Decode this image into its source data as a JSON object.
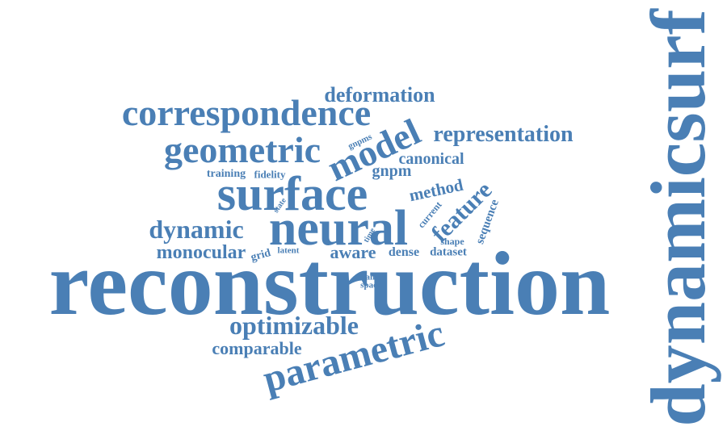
{
  "color": "#4a7fb5",
  "words": {
    "dynamicsurf": "dynamicsurf",
    "reconstruction": "reconstruction",
    "surface": "surface",
    "neural": "neural",
    "correspondence": "correspondence",
    "geometric": "geometric",
    "model": "model",
    "parametric": "parametric",
    "optimizable": "optimizable",
    "comparable": "comparable",
    "dynamic": "dynamic",
    "monocular": "monocular",
    "representation": "representation",
    "deformation": "deformation",
    "feature": "feature",
    "method": "method",
    "canonical": "canonical",
    "gnpm": "gnpm",
    "aware": "aware",
    "dense": "dense",
    "dataset": "dataset",
    "sequence": "sequence",
    "shape": "shape",
    "current": "current",
    "training": "training",
    "fidelity": "fidelity",
    "gnpms": "gnpms",
    "state": "state",
    "grid": "grid",
    "latent": "latent",
    "time": "time",
    "frame": "frame",
    "space": "space"
  }
}
